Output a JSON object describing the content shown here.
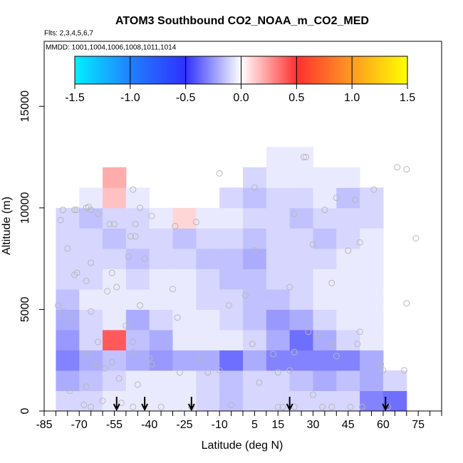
{
  "chart_data": {
    "type": "heatmap",
    "title": "ATOM3 Southbound CO2_NOAA_m_CO2_MED",
    "subtitle": "Flts: 2,3,4,5,6,7",
    "annotation": "MMDD: 1001,1004,1006,1008,1011,1014",
    "x_label": "Latitude (deg N)",
    "y_label": "Altitude (m)",
    "xlim": [
      -85,
      85
    ],
    "ylim": [
      0,
      18200
    ],
    "xticks": [
      -85,
      -70,
      -55,
      -40,
      -25,
      -10,
      5,
      15,
      30,
      45,
      60,
      75
    ],
    "xminorticks": [
      -80,
      -75,
      -65,
      -60,
      -50,
      -45,
      -35,
      -30,
      -20,
      -15,
      -5,
      0,
      10,
      20,
      25,
      35,
      40,
      50,
      55,
      65,
      70,
      80,
      85
    ],
    "yticks": [
      0,
      5000,
      10000,
      15000
    ],
    "colorbar": {
      "lim": [
        -1.5,
        1.5
      ],
      "ticks": [
        -1.5,
        {
          "value": -1.0,
          "label": "-1.0"
        },
        -0.5,
        {
          "value": 0.0,
          "label": "0.0"
        },
        0.5,
        {
          "value": 1.0,
          "label": "1.0"
        },
        1.5
      ],
      "colors": [
        "#00f0ff",
        "#2080ff",
        "#3030ff",
        "#ffffff",
        "#ff3030",
        "#ff9a20",
        "#ffff00"
      ]
    },
    "x_edges": [
      -80,
      -70,
      -60,
      -50,
      -40,
      -30,
      -20,
      -10,
      0,
      10,
      20,
      30,
      40,
      50,
      60,
      70
    ],
    "y_edges": [
      0,
      1000,
      2000,
      3000,
      4000,
      5000,
      6000,
      7000,
      8000,
      9000,
      10000,
      11000,
      12000,
      13000
    ],
    "z": [
      [
        -0.1,
        -0.1,
        -0.05,
        -0.05,
        -0.05,
        -0.05,
        -0.1,
        -0.15,
        -0.1,
        -0.1,
        -0.1,
        -0.1,
        -0.1,
        -0.3,
        -0.35
      ],
      [
        -0.2,
        -0.15,
        -0.1,
        -0.05,
        -0.05,
        -0.05,
        -0.1,
        -0.15,
        -0.1,
        -0.1,
        -0.15,
        -0.2,
        -0.15,
        -0.2,
        -0.1
      ],
      [
        -0.3,
        -0.2,
        -0.15,
        -0.2,
        -0.25,
        -0.2,
        -0.2,
        -0.35,
        -0.2,
        -0.3,
        -0.3,
        -0.3,
        -0.3,
        -0.2,
        null
      ],
      [
        -0.25,
        -0.1,
        0.4,
        -0.15,
        -0.2,
        -0.05,
        -0.05,
        -0.05,
        -0.1,
        -0.2,
        -0.35,
        -0.2,
        -0.1,
        -0.05,
        null
      ],
      [
        -0.2,
        -0.1,
        -0.05,
        -0.2,
        -0.1,
        -0.05,
        -0.05,
        -0.1,
        -0.15,
        -0.25,
        -0.2,
        -0.1,
        -0.05,
        -0.05,
        null
      ],
      [
        -0.15,
        -0.05,
        -0.05,
        -0.05,
        -0.05,
        -0.05,
        -0.1,
        -0.1,
        -0.15,
        -0.15,
        -0.1,
        -0.05,
        -0.05,
        -0.05,
        null
      ],
      [
        -0.1,
        -0.1,
        -0.05,
        -0.1,
        -0.05,
        -0.05,
        -0.1,
        -0.15,
        -0.15,
        -0.1,
        -0.1,
        -0.05,
        -0.05,
        -0.05,
        null
      ],
      [
        -0.1,
        -0.1,
        -0.1,
        -0.15,
        -0.1,
        -0.1,
        -0.15,
        -0.15,
        -0.2,
        -0.1,
        -0.1,
        -0.1,
        -0.05,
        -0.05,
        null
      ],
      [
        -0.1,
        -0.1,
        -0.15,
        -0.1,
        -0.1,
        -0.15,
        -0.1,
        -0.1,
        -0.15,
        -0.1,
        -0.1,
        -0.15,
        -0.1,
        -0.05,
        null
      ],
      [
        -0.1,
        -0.15,
        -0.1,
        -0.1,
        -0.05,
        0.1,
        -0.05,
        -0.05,
        -0.1,
        -0.1,
        -0.15,
        -0.1,
        -0.1,
        -0.1,
        null
      ],
      [
        null,
        -0.05,
        0.15,
        -0.05,
        null,
        null,
        null,
        -0.1,
        -0.15,
        -0.1,
        -0.1,
        -0.05,
        -0.15,
        -0.1,
        null
      ],
      [
        null,
        null,
        0.2,
        null,
        null,
        null,
        null,
        null,
        -0.1,
        -0.05,
        -0.05,
        -0.05,
        -0.05,
        null,
        null
      ],
      [
        null,
        null,
        null,
        null,
        null,
        null,
        null,
        null,
        null,
        -0.05,
        -0.05,
        null,
        null,
        null,
        null
      ]
    ],
    "points": {
      "x": [
        -78,
        -77,
        -72,
        -71,
        -67,
        -65,
        -66,
        -62,
        -57,
        -55,
        -48,
        -46,
        -46,
        -44,
        -47,
        -39,
        -29,
        -20,
        -10,
        5,
        22,
        26,
        27,
        35,
        40,
        48,
        56,
        66,
        70,
        74,
        -75,
        -72,
        -71,
        -67,
        -65,
        -56,
        -54,
        -58,
        -49,
        -42,
        -30,
        -6,
        1,
        5,
        20,
        30,
        38,
        45,
        50,
        70,
        -79,
        -77,
        -74,
        -65,
        -50,
        -44,
        -47,
        -47,
        -62,
        -67,
        -63,
        -59,
        -56,
        -53,
        -45,
        -40,
        -39,
        -27,
        -28,
        -18,
        -15,
        4,
        13,
        15,
        20,
        22,
        28,
        32,
        38,
        40,
        49,
        50,
        59,
        60,
        69,
        -74,
        -67,
        -68,
        -65,
        -60,
        -52,
        -47,
        -35,
        -22,
        -5,
        15,
        17,
        22,
        34,
        38,
        46,
        51,
        62,
        30,
        7,
        -10
      ],
      "y": [
        9400,
        9900,
        9900,
        9900,
        10000,
        9900,
        10050,
        9700,
        9200,
        9200,
        8600,
        8600,
        9200,
        10000,
        10900,
        9600,
        9100,
        9300,
        11700,
        11000,
        9700,
        12500,
        12500,
        9900,
        10500,
        10400,
        10900,
        12000,
        11900,
        8500,
        8000,
        6700,
        6800,
        6400,
        7300,
        6800,
        6100,
        5900,
        7600,
        7500,
        6000,
        5200,
        5700,
        7900,
        6100,
        8200,
        6300,
        7900,
        8300,
        5300,
        5200,
        4900,
        4600,
        4900,
        4200,
        5200,
        3400,
        2900,
        3400,
        2800,
        2300,
        2100,
        2400,
        1600,
        1300,
        2600,
        2300,
        1900,
        4600,
        2600,
        1900,
        3300,
        2800,
        1900,
        2000,
        2900,
        3900,
        3800,
        3300,
        2700,
        3300,
        3900,
        2300,
        2000,
        2000,
        1000,
        1200,
        300,
        200,
        500,
        400,
        200,
        200,
        200,
        300,
        200,
        200,
        200,
        200,
        200,
        200,
        200,
        200,
        800,
        1400,
        2000
      ]
    },
    "arrows_x": [
      -54,
      -42,
      -22,
      20,
      61
    ]
  }
}
